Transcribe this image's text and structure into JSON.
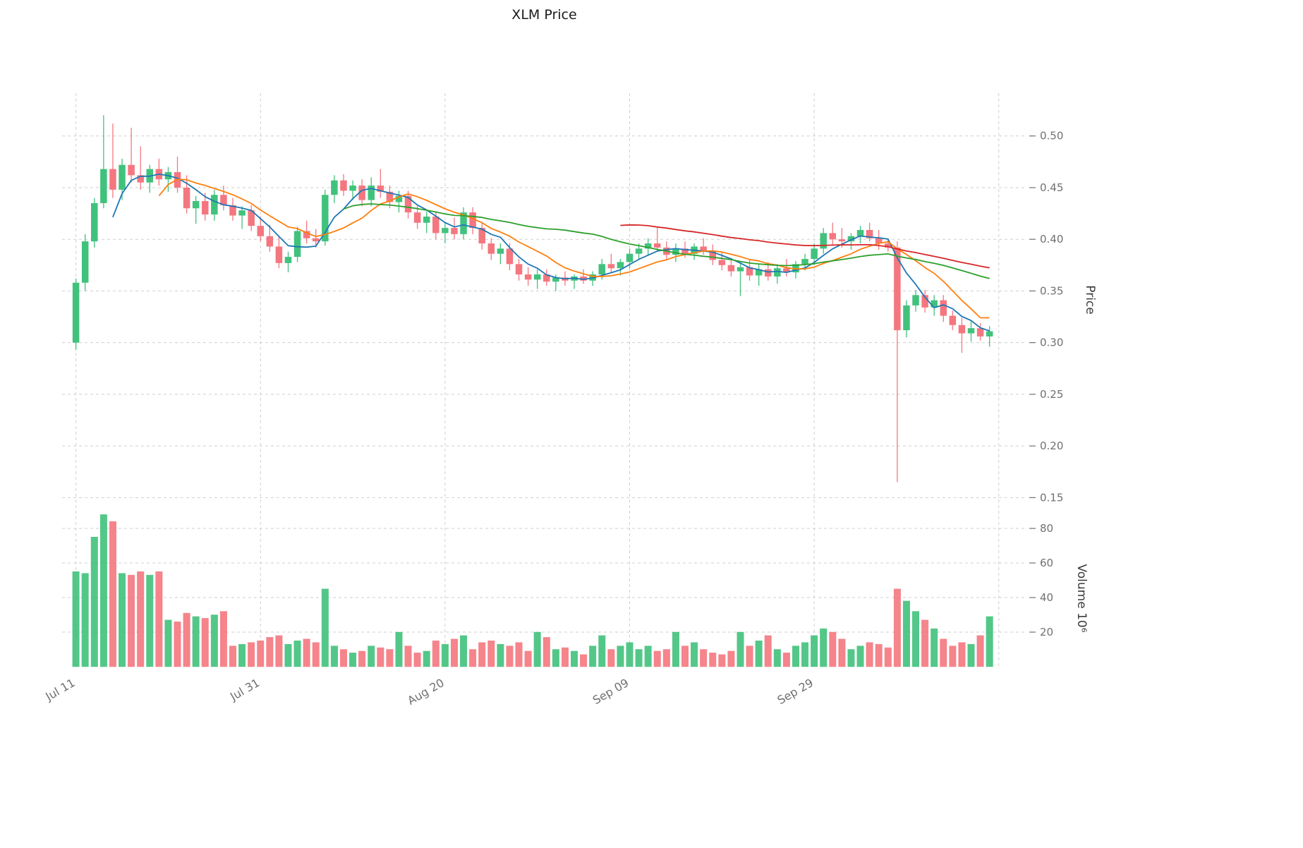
{
  "chart_data": {
    "type": "candlestick",
    "title": "XLM Price",
    "ylabel_price": "Price",
    "ylabel_volume": "Volume  10⁶",
    "legend_position": "none",
    "grid": true,
    "x_tick_labels": [
      "Jul 11",
      "Jul 31",
      "Aug 20",
      "Sep 09",
      "Sep 29"
    ],
    "x_tick_indices": [
      0,
      20,
      40,
      60,
      80
    ],
    "extra_vertical_gridline_index": 100,
    "price_ticks": [
      "0.15",
      "0.20",
      "0.25",
      "0.30",
      "0.35",
      "0.40",
      "0.45",
      "0.50"
    ],
    "price_tick_values": [
      0.15,
      0.2,
      0.25,
      0.3,
      0.35,
      0.4,
      0.45,
      0.5
    ],
    "volume_ticks": [
      "20",
      "40",
      "60",
      "80"
    ],
    "volume_tick_values": [
      20,
      40,
      60,
      80
    ],
    "price_range": [
      0.14,
      0.536
    ],
    "volume_unit": "millions",
    "colors": {
      "up": "#41c27c",
      "down": "#f4777f",
      "grid": "#cfcfcf",
      "tick_text": "#707070",
      "title_text": "#1a1a1a"
    },
    "moving_averages": [
      {
        "name": "MA5",
        "window": 5,
        "color": "#1f77b4"
      },
      {
        "name": "MA10",
        "window": 10,
        "color": "#ff7f0e"
      },
      {
        "name": "MA30",
        "window": 30,
        "color": "#2ca02c"
      },
      {
        "name": "MA60",
        "window": 60,
        "color": "#d62728"
      }
    ],
    "columns": [
      "date",
      "open",
      "high",
      "low",
      "close",
      "volume_m"
    ],
    "candles": [
      [
        "Jul 11",
        0.3,
        0.362,
        0.293,
        0.358,
        55
      ],
      [
        "Jul 12",
        0.358,
        0.405,
        0.35,
        0.398,
        54
      ],
      [
        "Jul 13",
        0.398,
        0.44,
        0.392,
        0.435,
        75
      ],
      [
        "Jul 14",
        0.435,
        0.52,
        0.43,
        0.468,
        88
      ],
      [
        "Jul 15",
        0.468,
        0.512,
        0.44,
        0.448,
        84
      ],
      [
        "Jul 16",
        0.448,
        0.478,
        0.438,
        0.472,
        54
      ],
      [
        "Jul 17",
        0.472,
        0.508,
        0.455,
        0.462,
        53
      ],
      [
        "Jul 18",
        0.462,
        0.49,
        0.448,
        0.455,
        55
      ],
      [
        "Jul 19",
        0.455,
        0.472,
        0.445,
        0.468,
        53
      ],
      [
        "Jul 20",
        0.468,
        0.478,
        0.452,
        0.458,
        55
      ],
      [
        "Jul 21",
        0.458,
        0.47,
        0.446,
        0.465,
        27
      ],
      [
        "Jul 22",
        0.465,
        0.48,
        0.445,
        0.45,
        26
      ],
      [
        "Jul 23",
        0.45,
        0.462,
        0.425,
        0.43,
        31
      ],
      [
        "Jul 24",
        0.43,
        0.442,
        0.415,
        0.437,
        29
      ],
      [
        "Jul 25",
        0.437,
        0.445,
        0.418,
        0.424,
        28
      ],
      [
        "Jul 26",
        0.424,
        0.448,
        0.418,
        0.443,
        30
      ],
      [
        "Jul 27",
        0.443,
        0.452,
        0.428,
        0.433,
        32
      ],
      [
        "Jul 28",
        0.433,
        0.44,
        0.418,
        0.423,
        12
      ],
      [
        "Jul 29",
        0.423,
        0.432,
        0.41,
        0.428,
        13
      ],
      [
        "Jul 30",
        0.428,
        0.433,
        0.408,
        0.413,
        14
      ],
      [
        "Jul 31",
        0.413,
        0.422,
        0.398,
        0.403,
        15
      ],
      [
        "Aug 01",
        0.403,
        0.414,
        0.388,
        0.393,
        17
      ],
      [
        "Aug 02",
        0.393,
        0.402,
        0.372,
        0.377,
        18
      ],
      [
        "Aug 03",
        0.377,
        0.388,
        0.368,
        0.383,
        13
      ],
      [
        "Aug 04",
        0.383,
        0.412,
        0.378,
        0.408,
        15
      ],
      [
        "Aug 05",
        0.408,
        0.418,
        0.396,
        0.401,
        16
      ],
      [
        "Aug 06",
        0.401,
        0.41,
        0.392,
        0.398,
        14
      ],
      [
        "Aug 07",
        0.398,
        0.448,
        0.394,
        0.443,
        45
      ],
      [
        "Aug 08",
        0.443,
        0.462,
        0.435,
        0.457,
        12
      ],
      [
        "Aug 09",
        0.457,
        0.463,
        0.442,
        0.447,
        10
      ],
      [
        "Aug 10",
        0.447,
        0.457,
        0.438,
        0.452,
        8
      ],
      [
        "Aug 11",
        0.452,
        0.458,
        0.432,
        0.438,
        9
      ],
      [
        "Aug 12",
        0.438,
        0.46,
        0.432,
        0.452,
        12
      ],
      [
        "Aug 13",
        0.452,
        0.468,
        0.44,
        0.446,
        11
      ],
      [
        "Aug 14",
        0.446,
        0.452,
        0.43,
        0.436,
        10
      ],
      [
        "Aug 15",
        0.436,
        0.447,
        0.426,
        0.442,
        20
      ],
      [
        "Aug 16",
        0.442,
        0.447,
        0.42,
        0.426,
        12
      ],
      [
        "Aug 17",
        0.426,
        0.432,
        0.41,
        0.416,
        8
      ],
      [
        "Aug 18",
        0.416,
        0.427,
        0.406,
        0.422,
        9
      ],
      [
        "Aug 19",
        0.422,
        0.427,
        0.4,
        0.406,
        15
      ],
      [
        "Aug 20",
        0.406,
        0.416,
        0.396,
        0.411,
        13
      ],
      [
        "Aug 21",
        0.411,
        0.421,
        0.4,
        0.405,
        16
      ],
      [
        "Aug 22",
        0.405,
        0.431,
        0.4,
        0.426,
        18
      ],
      [
        "Aug 23",
        0.426,
        0.431,
        0.405,
        0.411,
        10
      ],
      [
        "Aug 24",
        0.411,
        0.416,
        0.39,
        0.396,
        14
      ],
      [
        "Aug 25",
        0.396,
        0.401,
        0.38,
        0.386,
        15
      ],
      [
        "Aug 26",
        0.386,
        0.396,
        0.376,
        0.391,
        13
      ],
      [
        "Aug 27",
        0.391,
        0.396,
        0.37,
        0.376,
        12
      ],
      [
        "Aug 28",
        0.376,
        0.381,
        0.36,
        0.366,
        14
      ],
      [
        "Aug 29",
        0.366,
        0.373,
        0.355,
        0.361,
        9
      ],
      [
        "Aug 30",
        0.361,
        0.371,
        0.352,
        0.366,
        20
      ],
      [
        "Aug 31",
        0.366,
        0.371,
        0.355,
        0.359,
        17
      ],
      [
        "Sep 01",
        0.359,
        0.366,
        0.35,
        0.363,
        10
      ],
      [
        "Sep 02",
        0.363,
        0.369,
        0.355,
        0.36,
        11
      ],
      [
        "Sep 03",
        0.36,
        0.366,
        0.352,
        0.364,
        9
      ],
      [
        "Sep 04",
        0.364,
        0.371,
        0.357,
        0.36,
        7
      ],
      [
        "Sep 05",
        0.36,
        0.369,
        0.355,
        0.366,
        12
      ],
      [
        "Sep 06",
        0.366,
        0.381,
        0.361,
        0.376,
        18
      ],
      [
        "Sep 07",
        0.376,
        0.386,
        0.368,
        0.372,
        10
      ],
      [
        "Sep 08",
        0.372,
        0.381,
        0.365,
        0.378,
        12
      ],
      [
        "Sep 09",
        0.378,
        0.391,
        0.372,
        0.386,
        14
      ],
      [
        "Sep 10",
        0.386,
        0.396,
        0.38,
        0.391,
        10
      ],
      [
        "Sep 11",
        0.391,
        0.401,
        0.385,
        0.396,
        12
      ],
      [
        "Sep 12",
        0.396,
        0.411,
        0.388,
        0.392,
        9
      ],
      [
        "Sep 13",
        0.392,
        0.398,
        0.38,
        0.385,
        10
      ],
      [
        "Sep 14",
        0.385,
        0.396,
        0.378,
        0.391,
        20
      ],
      [
        "Sep 15",
        0.391,
        0.398,
        0.382,
        0.386,
        12
      ],
      [
        "Sep 16",
        0.386,
        0.396,
        0.38,
        0.393,
        14
      ],
      [
        "Sep 17",
        0.393,
        0.401,
        0.385,
        0.388,
        10
      ],
      [
        "Sep 18",
        0.388,
        0.395,
        0.375,
        0.38,
        8
      ],
      [
        "Sep 19",
        0.38,
        0.388,
        0.37,
        0.375,
        7
      ],
      [
        "Sep 20",
        0.375,
        0.382,
        0.364,
        0.369,
        9
      ],
      [
        "Sep 21",
        0.369,
        0.378,
        0.345,
        0.373,
        20
      ],
      [
        "Sep 22",
        0.373,
        0.381,
        0.36,
        0.365,
        12
      ],
      [
        "Sep 23",
        0.365,
        0.376,
        0.355,
        0.371,
        15
      ],
      [
        "Sep 24",
        0.371,
        0.378,
        0.36,
        0.364,
        18
      ],
      [
        "Sep 25",
        0.364,
        0.376,
        0.357,
        0.372,
        10
      ],
      [
        "Sep 26",
        0.372,
        0.381,
        0.364,
        0.368,
        8
      ],
      [
        "Sep 27",
        0.368,
        0.379,
        0.362,
        0.376,
        12
      ],
      [
        "Sep 28",
        0.376,
        0.386,
        0.37,
        0.381,
        14
      ],
      [
        "Sep 29",
        0.381,
        0.396,
        0.375,
        0.391,
        18
      ],
      [
        "Sep 30",
        0.391,
        0.411,
        0.386,
        0.406,
        22
      ],
      [
        "Oct 01",
        0.406,
        0.416,
        0.395,
        0.4,
        20
      ],
      [
        "Oct 02",
        0.4,
        0.411,
        0.392,
        0.398,
        16
      ],
      [
        "Oct 03",
        0.398,
        0.406,
        0.39,
        0.403,
        10
      ],
      [
        "Oct 04",
        0.403,
        0.413,
        0.396,
        0.409,
        12
      ],
      [
        "Oct 05",
        0.409,
        0.416,
        0.398,
        0.401,
        14
      ],
      [
        "Oct 06",
        0.401,
        0.409,
        0.39,
        0.396,
        13
      ],
      [
        "Oct 07",
        0.396,
        0.401,
        0.388,
        0.392,
        11
      ],
      [
        "Oct 08",
        0.392,
        0.398,
        0.165,
        0.312,
        45
      ],
      [
        "Oct 09",
        0.312,
        0.341,
        0.305,
        0.336,
        38
      ],
      [
        "Oct 10",
        0.336,
        0.351,
        0.33,
        0.346,
        32
      ],
      [
        "Oct 11",
        0.346,
        0.351,
        0.329,
        0.334,
        27
      ],
      [
        "Oct 12",
        0.334,
        0.346,
        0.326,
        0.341,
        22
      ],
      [
        "Oct 13",
        0.341,
        0.346,
        0.32,
        0.326,
        16
      ],
      [
        "Oct 14",
        0.326,
        0.331,
        0.312,
        0.317,
        12
      ],
      [
        "Oct 15",
        0.317,
        0.324,
        0.29,
        0.309,
        14
      ],
      [
        "Oct 16",
        0.309,
        0.321,
        0.301,
        0.314,
        13
      ],
      [
        "Oct 17",
        0.314,
        0.319,
        0.302,
        0.306,
        18
      ],
      [
        "Oct 18",
        0.306,
        0.316,
        0.296,
        0.311,
        29
      ]
    ]
  }
}
